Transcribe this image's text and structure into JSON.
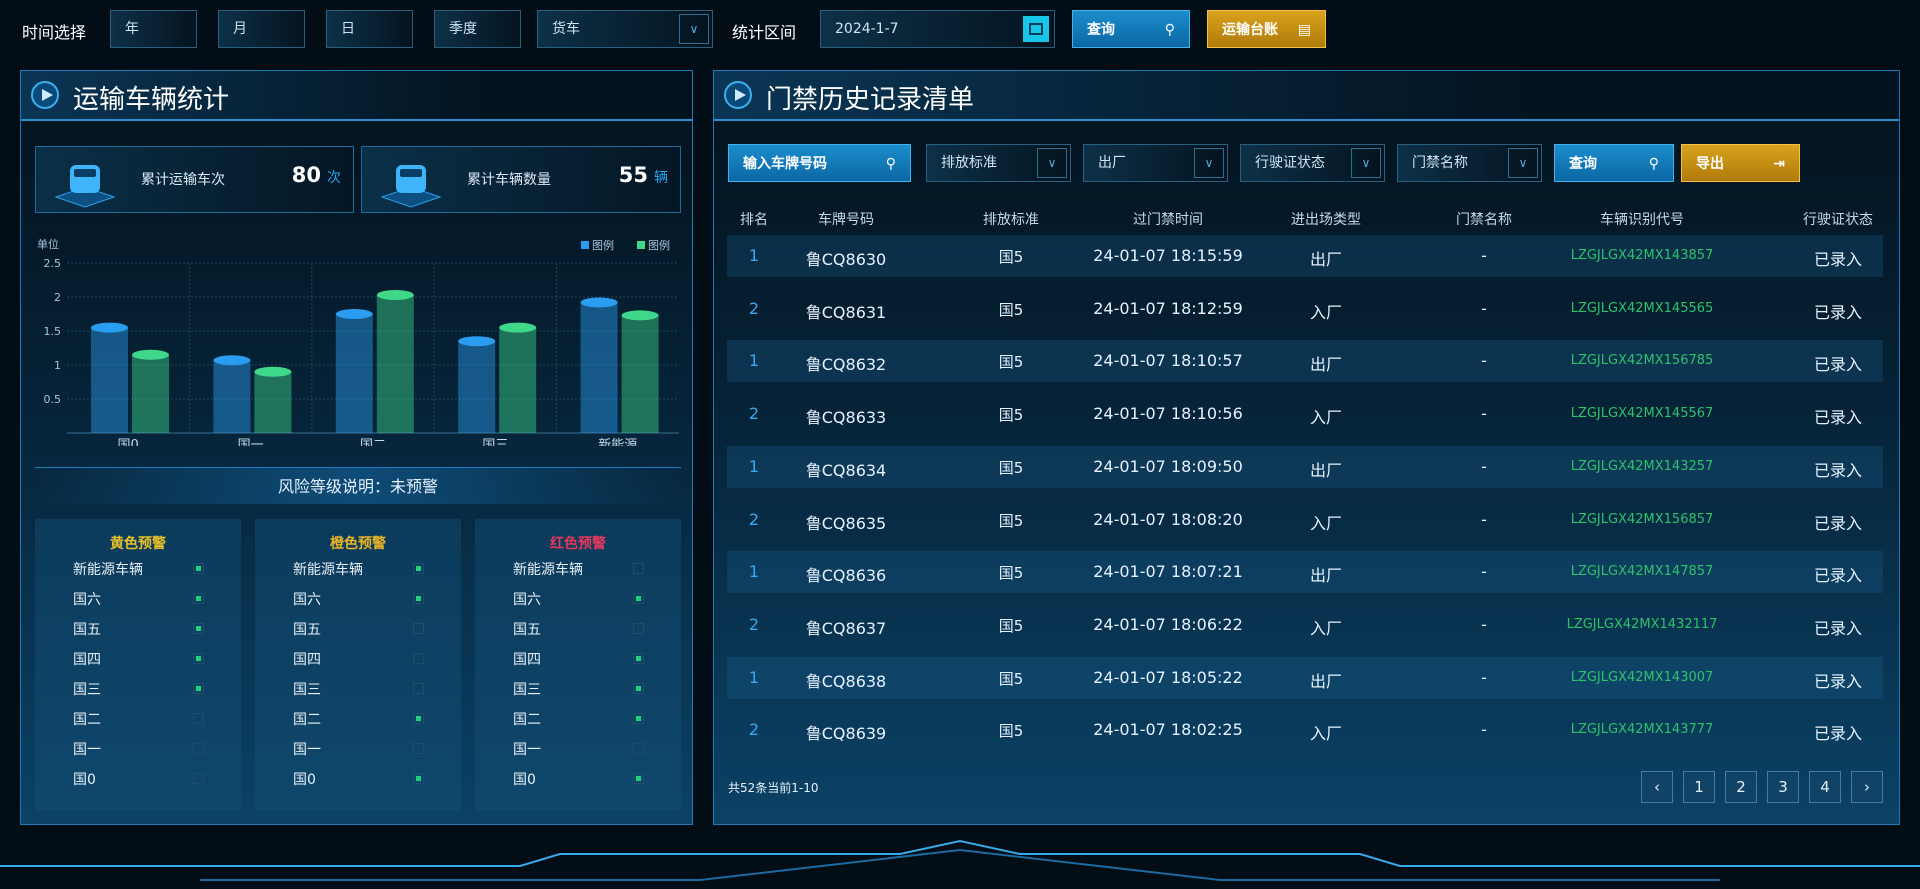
{
  "topbar": {
    "time_label": "时间选择",
    "year": "年",
    "month": "月",
    "day": "日",
    "quarter": "季度",
    "vehicle_type": "货车",
    "range_label": "统计区间",
    "date": "2024-1-7",
    "query": "查询",
    "ledger": "运输台账"
  },
  "left": {
    "title": "运输车辆统计",
    "cards": [
      {
        "label": "累计运输车次",
        "value": "80",
        "unit": "次"
      },
      {
        "label": "累计车辆数量",
        "value": "55",
        "unit": "辆"
      }
    ],
    "risk_label": "风险等级说明：未预警",
    "warnings": [
      {
        "title": "黄色预警",
        "color": "#e8c12a",
        "items": [
          {
            "name": "新能源车辆",
            "on": true
          },
          {
            "name": "国六",
            "on": true
          },
          {
            "name": "国五",
            "on": true
          },
          {
            "name": "国四",
            "on": true
          },
          {
            "name": "国三",
            "on": true
          },
          {
            "name": "国二",
            "on": false
          },
          {
            "name": "国一",
            "on": false
          },
          {
            "name": "国0",
            "on": false
          }
        ]
      },
      {
        "title": "橙色预警",
        "color": "#e8b426",
        "items": [
          {
            "name": "新能源车辆",
            "on": true
          },
          {
            "name": "国六",
            "on": true
          },
          {
            "name": "国五",
            "on": false
          },
          {
            "name": "国四",
            "on": false
          },
          {
            "name": "国三",
            "on": false
          },
          {
            "name": "国二",
            "on": true
          },
          {
            "name": "国一",
            "on": false
          },
          {
            "name": "国0",
            "on": true
          }
        ]
      },
      {
        "title": "红色预警",
        "color": "#e8375a",
        "items": [
          {
            "name": "新能源车辆",
            "on": false
          },
          {
            "name": "国六",
            "on": true
          },
          {
            "name": "国五",
            "on": false
          },
          {
            "name": "国四",
            "on": true
          },
          {
            "name": "国三",
            "on": true
          },
          {
            "name": "国二",
            "on": true
          },
          {
            "name": "国一",
            "on": false
          },
          {
            "name": "国0",
            "on": true
          }
        ]
      }
    ]
  },
  "chart_data": {
    "type": "bar",
    "ylabel": "单位",
    "categories": [
      "国0",
      "国一",
      "国二",
      "国三",
      "新能源"
    ],
    "ylim": [
      0,
      2.5
    ],
    "yticks": [
      "0.5",
      "1",
      "1.5",
      "2",
      "2.5"
    ],
    "grid": true,
    "legend_position": "top-right",
    "series": [
      {
        "name": "图例",
        "color": "#2a9df0",
        "values": [
          1.55,
          1.07,
          1.75,
          1.35,
          1.92
        ]
      },
      {
        "name": "图例",
        "color": "#3fd88a",
        "values": [
          1.15,
          0.9,
          2.03,
          1.55,
          1.73
        ]
      }
    ]
  },
  "right": {
    "title": "门禁历史记录清单",
    "filters": {
      "plate_placeholder": "输入车牌号码",
      "emission": "排放标准",
      "direction": "出厂",
      "license_status": "行驶证状态",
      "gate_name": "门禁名称",
      "query": "查询",
      "export": "导出"
    },
    "columns": [
      "排名",
      "车牌号码",
      "排放标准",
      "过门禁时间",
      "进出场类型",
      "门禁名称",
      "车辆识别代号",
      "行驶证状态"
    ],
    "rows": [
      [
        "1",
        "鲁CQ8630",
        "国5",
        "24-01-07 18:15:59",
        "出厂",
        "-",
        "LZGJLGX42MX143857",
        "已录入"
      ],
      [
        "2",
        "鲁CQ8631",
        "国5",
        "24-01-07 18:12:59",
        "入厂",
        "-",
        "LZGJLGX42MX145565",
        "已录入"
      ],
      [
        "1",
        "鲁CQ8632",
        "国5",
        "24-01-07 18:10:57",
        "出厂",
        "-",
        "LZGJLGX42MX156785",
        "已录入"
      ],
      [
        "2",
        "鲁CQ8633",
        "国5",
        "24-01-07 18:10:56",
        "入厂",
        "-",
        "LZGJLGX42MX145567",
        "已录入"
      ],
      [
        "1",
        "鲁CQ8634",
        "国5",
        "24-01-07 18:09:50",
        "出厂",
        "-",
        "LZGJLGX42MX143257",
        "已录入"
      ],
      [
        "2",
        "鲁CQ8635",
        "国5",
        "24-01-07 18:08:20",
        "入厂",
        "-",
        "LZGJLGX42MX156857",
        "已录入"
      ],
      [
        "1",
        "鲁CQ8636",
        "国5",
        "24-01-07 18:07:21",
        "出厂",
        "-",
        "LZGJLGX42MX147857",
        "已录入"
      ],
      [
        "2",
        "鲁CQ8637",
        "国5",
        "24-01-07 18:06:22",
        "入厂",
        "-",
        "LZGJLGX42MX1432117",
        "已录入"
      ],
      [
        "1",
        "鲁CQ8638",
        "国5",
        "24-01-07 18:05:22",
        "出厂",
        "-",
        "LZGJLGX42MX143007",
        "已录入"
      ],
      [
        "2",
        "鲁CQ8639",
        "国5",
        "24-01-07 18:02:25",
        "入厂",
        "-",
        "LZGJLGX42MX143777",
        "已录入"
      ]
    ],
    "footer": "共52条当前1-10",
    "pagination": {
      "prev": "‹",
      "pages": [
        "1",
        "2",
        "3",
        "4"
      ],
      "next": "›"
    }
  }
}
